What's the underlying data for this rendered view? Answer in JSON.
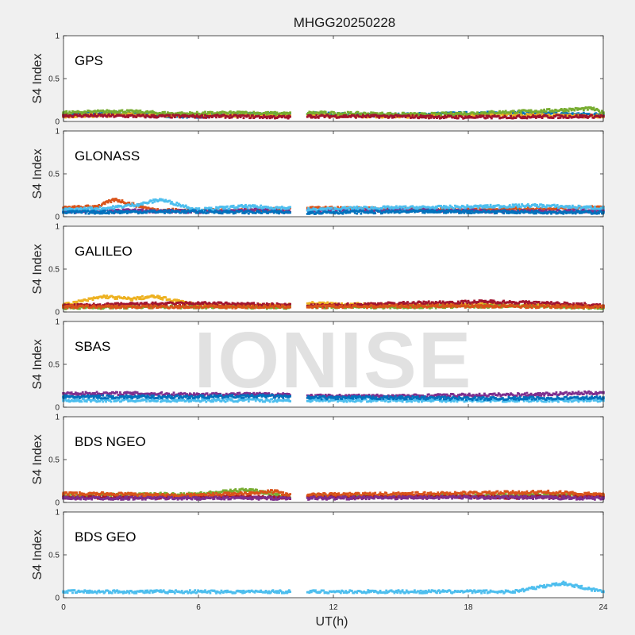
{
  "figure": {
    "title": "MHGG20250228",
    "watermark": "IONISE",
    "xlabel": "UT(h)"
  },
  "colors": [
    "#0072BD",
    "#D95319",
    "#EDB120",
    "#7E2F8E",
    "#77AC30",
    "#4DBEEE",
    "#A2142F"
  ],
  "chart_data": [
    {
      "type": "scatter",
      "panel": "GPS",
      "ylabel": "S4 Index",
      "xlim": [
        0,
        24
      ],
      "ylim": [
        0,
        1
      ],
      "xticks": [
        0,
        6,
        12,
        18,
        24
      ],
      "yticks": [
        0,
        0.5,
        1
      ],
      "data_gap_hours": [
        10.1,
        10.8
      ],
      "series": [
        {
          "values": [
            [
              0.0,
              0.08
            ],
            [
              2.0,
              0.1
            ],
            [
              4.0,
              0.07
            ],
            [
              6.0,
              0.06
            ],
            [
              8.0,
              0.09
            ],
            [
              10.0,
              0.08
            ],
            [
              11.0,
              0.09
            ],
            [
              14.0,
              0.07
            ],
            [
              17.0,
              0.09
            ],
            [
              20.0,
              0.1
            ],
            [
              24.0,
              0.08
            ]
          ]
        },
        {
          "values": [
            [
              0.0,
              0.06
            ],
            [
              3.0,
              0.08
            ],
            [
              6.0,
              0.07
            ],
            [
              9.0,
              0.07
            ],
            [
              10.0,
              0.06
            ],
            [
              11.0,
              0.07
            ],
            [
              15.0,
              0.06
            ],
            [
              19.0,
              0.08
            ],
            [
              24.0,
              0.06
            ]
          ]
        },
        {
          "values": [
            [
              0.0,
              0.1
            ],
            [
              2.5,
              0.12
            ],
            [
              5.0,
              0.09
            ],
            [
              8.0,
              0.1
            ],
            [
              10.0,
              0.09
            ],
            [
              11.0,
              0.1
            ],
            [
              16.0,
              0.08
            ],
            [
              21.0,
              0.12
            ],
            [
              23.5,
              0.15
            ],
            [
              24.0,
              0.1
            ]
          ]
        },
        {
          "values": [
            [
              0.0,
              0.07
            ],
            [
              4.0,
              0.06
            ],
            [
              7.0,
              0.06
            ],
            [
              10.0,
              0.05
            ],
            [
              11.0,
              0.06
            ],
            [
              14.0,
              0.06
            ],
            [
              18.0,
              0.05
            ],
            [
              24.0,
              0.06
            ]
          ]
        }
      ]
    },
    {
      "type": "scatter",
      "panel": "GLONASS",
      "ylabel": "S4 Index",
      "xlim": [
        0,
        24
      ],
      "ylim": [
        0,
        1
      ],
      "xticks": [
        0,
        6,
        12,
        18,
        24
      ],
      "yticks": [
        0,
        0.5,
        1
      ],
      "data_gap_hours": [
        10.1,
        10.8
      ],
      "series": [
        {
          "values": [
            [
              0.0,
              0.1
            ],
            [
              1.5,
              0.12
            ],
            [
              2.3,
              0.2
            ],
            [
              4.0,
              0.08
            ],
            [
              7.0,
              0.07
            ],
            [
              10.0,
              0.09
            ],
            [
              11.0,
              0.1
            ],
            [
              14.0,
              0.09
            ],
            [
              18.0,
              0.08
            ],
            [
              22.0,
              0.1
            ],
            [
              24.0,
              0.11
            ]
          ]
        },
        {
          "values": [
            [
              0.0,
              0.06
            ],
            [
              3.0,
              0.07
            ],
            [
              6.0,
              0.06
            ],
            [
              9.0,
              0.08
            ],
            [
              10.0,
              0.06
            ],
            [
              11.0,
              0.07
            ],
            [
              16.0,
              0.08
            ],
            [
              20.0,
              0.06
            ],
            [
              24.0,
              0.07
            ]
          ]
        },
        {
          "values": [
            [
              0.0,
              0.08
            ],
            [
              2.0,
              0.1
            ],
            [
              3.5,
              0.15
            ],
            [
              4.3,
              0.2
            ],
            [
              6.0,
              0.08
            ],
            [
              8.0,
              0.12
            ],
            [
              10.0,
              0.1
            ],
            [
              11.0,
              0.08
            ],
            [
              13.0,
              0.1
            ],
            [
              17.0,
              0.11
            ],
            [
              21.0,
              0.13
            ],
            [
              24.0,
              0.1
            ]
          ]
        },
        {
          "values": [
            [
              0.0,
              0.05
            ],
            [
              5.0,
              0.06
            ],
            [
              10.0,
              0.05
            ],
            [
              11.0,
              0.05
            ],
            [
              17.0,
              0.06
            ],
            [
              24.0,
              0.05
            ]
          ]
        }
      ]
    },
    {
      "type": "scatter",
      "panel": "GALILEO",
      "ylabel": "S4 Index",
      "xlim": [
        0,
        24
      ],
      "ylim": [
        0,
        1
      ],
      "xticks": [
        0,
        6,
        12,
        18,
        24
      ],
      "yticks": [
        0,
        0.5,
        1
      ],
      "data_gap_hours": [
        10.1,
        10.8
      ],
      "series": [
        {
          "values": [
            [
              0.0,
              0.08
            ],
            [
              1.8,
              0.18
            ],
            [
              3.0,
              0.15
            ],
            [
              4.0,
              0.18
            ],
            [
              6.0,
              0.08
            ],
            [
              8.0,
              0.07
            ],
            [
              10.0,
              0.08
            ],
            [
              11.0,
              0.1
            ],
            [
              14.0,
              0.08
            ],
            [
              18.0,
              0.09
            ],
            [
              22.0,
              0.07
            ],
            [
              24.0,
              0.06
            ]
          ]
        },
        {
          "values": [
            [
              0.0,
              0.05
            ],
            [
              4.0,
              0.06
            ],
            [
              8.0,
              0.06
            ],
            [
              10.0,
              0.05
            ],
            [
              11.0,
              0.06
            ],
            [
              16.0,
              0.06
            ],
            [
              20.0,
              0.07
            ],
            [
              24.0,
              0.05
            ]
          ]
        },
        {
          "values": [
            [
              0.0,
              0.07
            ],
            [
              3.0,
              0.09
            ],
            [
              6.0,
              0.1
            ],
            [
              8.0,
              0.09
            ],
            [
              10.0,
              0.08
            ],
            [
              11.0,
              0.07
            ],
            [
              15.0,
              0.1
            ],
            [
              19.0,
              0.12
            ],
            [
              23.0,
              0.09
            ],
            [
              24.0,
              0.07
            ]
          ]
        },
        {
          "values": [
            [
              0.0,
              0.06
            ],
            [
              5.0,
              0.06
            ],
            [
              10.0,
              0.06
            ],
            [
              11.0,
              0.06
            ],
            [
              17.0,
              0.07
            ],
            [
              24.0,
              0.06
            ]
          ]
        }
      ]
    },
    {
      "type": "scatter",
      "panel": "SBAS",
      "ylabel": "S4 Index",
      "xlim": [
        0,
        24
      ],
      "ylim": [
        0,
        1
      ],
      "xticks": [
        0,
        6,
        12,
        18,
        24
      ],
      "yticks": [
        0,
        0.5,
        1
      ],
      "data_gap_hours": [
        10.1,
        10.8
      ],
      "series": [
        {
          "values": [
            [
              0.0,
              0.16
            ],
            [
              3.0,
              0.16
            ],
            [
              6.0,
              0.15
            ],
            [
              9.0,
              0.15
            ],
            [
              10.0,
              0.15
            ],
            [
              11.0,
              0.13
            ],
            [
              15.0,
              0.13
            ],
            [
              18.0,
              0.14
            ],
            [
              21.0,
              0.15
            ],
            [
              24.0,
              0.17
            ]
          ]
        },
        {
          "values": [
            [
              0.0,
              0.08
            ],
            [
              4.0,
              0.08
            ],
            [
              8.0,
              0.08
            ],
            [
              10.0,
              0.08
            ],
            [
              11.0,
              0.08
            ],
            [
              16.0,
              0.08
            ],
            [
              20.0,
              0.08
            ],
            [
              24.0,
              0.08
            ]
          ]
        },
        {
          "values": [
            [
              0.0,
              0.12
            ],
            [
              3.0,
              0.12
            ],
            [
              6.0,
              0.12
            ],
            [
              9.0,
              0.13
            ],
            [
              10.0,
              0.12
            ],
            [
              11.0,
              0.11
            ],
            [
              15.0,
              0.11
            ],
            [
              19.0,
              0.1
            ],
            [
              24.0,
              0.11
            ]
          ]
        }
      ]
    },
    {
      "type": "scatter",
      "panel": "BDS NGEO",
      "ylabel": "S4 Index",
      "xlim": [
        0,
        24
      ],
      "ylim": [
        0,
        1
      ],
      "xticks": [
        0,
        6,
        12,
        18,
        24
      ],
      "yticks": [
        0,
        0.5,
        1
      ],
      "data_gap_hours": [
        10.1,
        10.8
      ],
      "series": [
        {
          "values": [
            [
              0.0,
              0.08
            ],
            [
              3.0,
              0.09
            ],
            [
              6.0,
              0.1
            ],
            [
              8.3,
              0.15
            ],
            [
              10.0,
              0.06
            ],
            [
              11.0,
              0.08
            ],
            [
              14.0,
              0.07
            ],
            [
              18.0,
              0.08
            ],
            [
              22.0,
              0.09
            ],
            [
              24.0,
              0.08
            ]
          ]
        },
        {
          "values": [
            [
              0.0,
              0.06
            ],
            [
              4.0,
              0.06
            ],
            [
              8.0,
              0.07
            ],
            [
              10.0,
              0.05
            ],
            [
              11.0,
              0.06
            ],
            [
              16.0,
              0.07
            ],
            [
              20.0,
              0.06
            ],
            [
              24.0,
              0.07
            ]
          ]
        },
        {
          "values": [
            [
              0.0,
              0.1
            ],
            [
              2.0,
              0.1
            ],
            [
              5.0,
              0.08
            ],
            [
              7.5,
              0.1
            ],
            [
              9.5,
              0.13
            ],
            [
              10.0,
              0.08
            ],
            [
              11.0,
              0.09
            ],
            [
              15.0,
              0.1
            ],
            [
              21.5,
              0.12
            ],
            [
              24.0,
              0.09
            ]
          ]
        },
        {
          "values": [
            [
              0.0,
              0.05
            ],
            [
              6.0,
              0.05
            ],
            [
              10.0,
              0.05
            ],
            [
              11.0,
              0.05
            ],
            [
              18.0,
              0.06
            ],
            [
              24.0,
              0.05
            ]
          ]
        }
      ]
    },
    {
      "type": "scatter",
      "panel": "BDS GEO",
      "ylabel": "S4 Index",
      "xlim": [
        0,
        24
      ],
      "ylim": [
        0,
        1
      ],
      "xticks": [
        0,
        6,
        12,
        18,
        24
      ],
      "yticks": [
        0,
        0.5,
        1
      ],
      "data_gap_hours": [
        10.1,
        10.8
      ],
      "series": [
        {
          "values": [
            [
              0.0,
              0.07
            ],
            [
              4.0,
              0.07
            ],
            [
              8.0,
              0.07
            ],
            [
              10.0,
              0.07
            ],
            [
              11.0,
              0.07
            ],
            [
              16.0,
              0.07
            ],
            [
              20.0,
              0.07
            ],
            [
              22.2,
              0.17
            ],
            [
              24.0,
              0.07
            ]
          ]
        }
      ]
    }
  ]
}
